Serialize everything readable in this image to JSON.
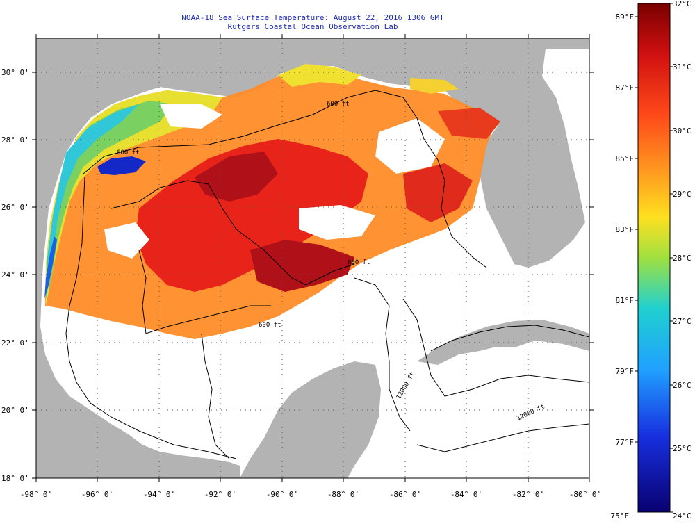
{
  "header": {
    "title": "NOAA-18 Sea Surface Temperature:  August 22, 2016 1306 GMT",
    "subtitle": "Rutgers Coastal Ocean Observation Lab"
  },
  "map": {
    "region": "Gulf of Mexico",
    "lon_range": [
      -98,
      -80
    ],
    "lat_range": [
      18,
      31
    ],
    "lon_labels": [
      "-98° 0'",
      "-96° 0'",
      "-94° 0'",
      "-92° 0'",
      "-90° 0'",
      "-88° 0'",
      "-86° 0'",
      "-84° 0'",
      "-82° 0'",
      "-80° 0'"
    ],
    "lat_labels": [
      "30° 0'",
      "28° 0'",
      "26° 0'",
      "24° 0'",
      "22° 0'",
      "20° 0'",
      "18° 0'"
    ],
    "contour_labels": [
      "600 ft",
      "600 ft",
      "600 ft",
      "600 ft",
      "12000 ft",
      "12000 ft"
    ],
    "colors": {
      "land": "#b3b3b3",
      "no_data": "#ffffff",
      "hot": "#c8141b",
      "warm": "#ff6a12",
      "cool": "#32d2dc",
      "cold": "#1420c8"
    }
  },
  "colorbar": {
    "celsius_labels": [
      "32°C",
      "31°C",
      "30°C",
      "29°C",
      "28°C",
      "27°C",
      "26°C",
      "25°C",
      "24°C"
    ],
    "fahrenheit_labels": [
      "89°F",
      "87°F",
      "85°F",
      "83°F",
      "81°F",
      "79°F",
      "77°F",
      "75°F"
    ],
    "range_c": [
      24,
      32
    ]
  }
}
